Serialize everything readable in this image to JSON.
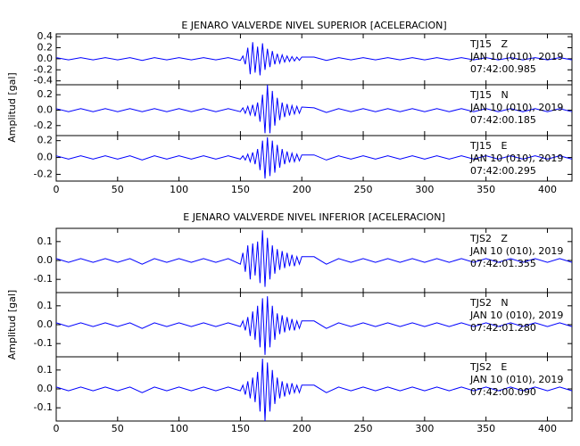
{
  "chart_data": [
    {
      "type": "line",
      "title": "E JENARO VALVERDE NIVEL SUPERIOR [ACELERACION]",
      "ylabel": "Amplitud [gal]",
      "xlim": [
        0,
        420
      ],
      "xticks": [
        0,
        50,
        100,
        150,
        200,
        250,
        300,
        350,
        400
      ],
      "x": [
        0,
        10,
        20,
        30,
        40,
        50,
        60,
        70,
        80,
        90,
        100,
        110,
        120,
        130,
        140,
        150,
        152,
        154,
        156,
        158,
        160,
        162,
        164,
        166,
        168,
        170,
        172,
        174,
        176,
        178,
        180,
        182,
        184,
        186,
        188,
        190,
        192,
        194,
        196,
        198,
        200,
        210,
        220,
        230,
        240,
        250,
        260,
        270,
        280,
        290,
        300,
        310,
        320,
        330,
        340,
        350,
        360,
        370,
        380,
        390,
        400,
        410,
        420
      ],
      "panels": [
        {
          "ylim": [
            -0.47,
            0.45
          ],
          "yticks": [
            0.4,
            0.2,
            {
              "value": 0,
              "label": "0.0"
            },
            -0.2,
            -0.4
          ],
          "color": "#0000ff",
          "station": "TJ15   Z",
          "date": "JAN 10 (010), 2019",
          "time": "07:42:00.985",
          "values": [
            0.02,
            -0.02,
            0.02,
            -0.02,
            0.02,
            -0.02,
            0.02,
            -0.03,
            0.02,
            -0.02,
            0.02,
            -0.02,
            0.02,
            -0.02,
            0.02,
            -0.03,
            0.05,
            -0.1,
            0.2,
            -0.28,
            0.3,
            -0.25,
            0.22,
            -0.3,
            0.28,
            -0.2,
            0.18,
            -0.15,
            0.14,
            -0.1,
            0.09,
            -0.08,
            0.07,
            -0.06,
            0.05,
            -0.05,
            0.04,
            -0.04,
            0.03,
            -0.03,
            0.03,
            0.03,
            -0.03,
            0.02,
            -0.02,
            0.02,
            -0.02,
            0.02,
            -0.02,
            0.02,
            -0.02,
            0.02,
            -0.02,
            0.02,
            -0.02,
            0.02,
            -0.02,
            0.02,
            -0.02,
            0.02,
            -0.02,
            0.02,
            -0.02
          ]
        },
        {
          "ylim": [
            -0.33,
            0.33
          ],
          "yticks": [
            0.2,
            {
              "value": 0,
              "label": "0.0"
            },
            -0.2
          ],
          "color": "#0000ff",
          "station": "TJ15   N",
          "date": "JAN 10 (010), 2019",
          "time": "07:42:00.185",
          "values": [
            0.02,
            -0.02,
            0.02,
            -0.02,
            0.02,
            -0.02,
            0.02,
            -0.02,
            0.02,
            -0.02,
            0.02,
            -0.02,
            0.02,
            -0.02,
            0.02,
            -0.02,
            0.03,
            -0.04,
            0.05,
            -0.06,
            0.07,
            -0.08,
            0.1,
            -0.15,
            0.2,
            -0.3,
            0.33,
            -0.3,
            0.25,
            -0.2,
            0.16,
            -0.13,
            0.1,
            -0.09,
            0.08,
            -0.07,
            0.06,
            -0.05,
            0.05,
            -0.04,
            0.04,
            0.03,
            -0.03,
            0.02,
            -0.02,
            0.02,
            -0.02,
            0.02,
            -0.02,
            0.02,
            -0.02,
            0.02,
            -0.02,
            0.02,
            -0.02,
            0.02,
            -0.02,
            0.02,
            -0.02,
            0.02,
            -0.02,
            0.02,
            -0.02
          ]
        },
        {
          "ylim": [
            -0.28,
            0.26
          ],
          "yticks": [
            0.2,
            {
              "value": 0,
              "label": "0.0"
            },
            -0.2
          ],
          "color": "#0000ff",
          "station": "TJ15   E",
          "date": "JAN 10 (010), 2019",
          "time": "07:42:00.295",
          "values": [
            0.02,
            -0.02,
            0.02,
            -0.02,
            0.02,
            -0.02,
            0.02,
            -0.03,
            0.02,
            -0.02,
            0.02,
            -0.02,
            0.02,
            -0.02,
            0.02,
            -0.02,
            0.02,
            -0.03,
            0.04,
            -0.05,
            0.06,
            -0.08,
            0.1,
            -0.15,
            0.2,
            -0.25,
            0.24,
            -0.22,
            0.2,
            -0.18,
            0.15,
            -0.12,
            0.1,
            -0.08,
            0.07,
            -0.06,
            0.05,
            -0.05,
            0.04,
            -0.04,
            0.03,
            0.03,
            -0.03,
            0.02,
            -0.02,
            0.02,
            -0.02,
            0.02,
            -0.02,
            0.02,
            -0.02,
            0.02,
            -0.02,
            0.02,
            -0.02,
            0.02,
            -0.02,
            0.02,
            -0.02,
            0.02,
            -0.02,
            0.02,
            -0.02
          ]
        }
      ]
    },
    {
      "type": "line",
      "title": "E JENARO VALVERDE NIVEL INFERIOR [ACELERACION]",
      "ylabel": "Amplitud [gal]",
      "xlim": [
        0,
        420
      ],
      "xticks": [
        0,
        50,
        100,
        150,
        200,
        250,
        300,
        350,
        400
      ],
      "x": [
        0,
        10,
        20,
        30,
        40,
        50,
        60,
        70,
        80,
        90,
        100,
        110,
        120,
        130,
        140,
        150,
        152,
        154,
        156,
        158,
        160,
        162,
        164,
        166,
        168,
        170,
        172,
        174,
        176,
        178,
        180,
        182,
        184,
        186,
        188,
        190,
        192,
        194,
        196,
        198,
        200,
        210,
        220,
        230,
        240,
        250,
        260,
        270,
        280,
        290,
        300,
        310,
        320,
        330,
        340,
        350,
        360,
        370,
        380,
        390,
        400,
        410,
        420
      ],
      "panels": [
        {
          "ylim": [
            -0.17,
            0.17
          ],
          "yticks": [
            0.1,
            {
              "value": 0,
              "label": "0.0"
            },
            -0.1
          ],
          "color": "#0000ff",
          "station": "TJS2   Z",
          "date": "JAN 10 (010), 2019",
          "time": "07:42:01.355",
          "values": [
            0.01,
            -0.01,
            0.01,
            -0.01,
            0.01,
            -0.01,
            0.01,
            -0.02,
            0.01,
            -0.01,
            0.01,
            -0.01,
            0.01,
            -0.01,
            0.01,
            -0.02,
            0.04,
            -0.06,
            0.08,
            -0.1,
            0.09,
            -0.08,
            0.1,
            -0.12,
            0.16,
            -0.14,
            0.12,
            -0.1,
            0.08,
            -0.07,
            0.06,
            -0.05,
            0.05,
            -0.04,
            0.04,
            -0.03,
            0.03,
            -0.03,
            0.02,
            -0.02,
            0.02,
            0.02,
            -0.02,
            0.01,
            -0.01,
            0.01,
            -0.01,
            0.01,
            -0.01,
            0.01,
            -0.01,
            0.01,
            -0.01,
            0.01,
            -0.01,
            0.01,
            -0.01,
            0.01,
            -0.01,
            0.01,
            -0.01,
            0.01,
            -0.01
          ]
        },
        {
          "ylim": [
            -0.17,
            0.17
          ],
          "yticks": [
            0.1,
            {
              "value": 0,
              "label": "0.0"
            },
            -0.1
          ],
          "color": "#0000ff",
          "station": "TJS2   N",
          "date": "JAN 10 (010), 2019",
          "time": "07:42:01.280",
          "values": [
            0.01,
            -0.01,
            0.01,
            -0.01,
            0.01,
            -0.01,
            0.01,
            -0.02,
            0.01,
            -0.01,
            0.01,
            -0.01,
            0.01,
            -0.01,
            0.01,
            -0.01,
            0.02,
            -0.03,
            0.04,
            -0.06,
            0.07,
            -0.08,
            0.1,
            -0.12,
            0.14,
            -0.16,
            0.15,
            -0.12,
            0.1,
            -0.08,
            0.06,
            -0.05,
            0.05,
            -0.04,
            0.04,
            -0.03,
            0.03,
            -0.03,
            0.02,
            -0.02,
            0.02,
            0.02,
            -0.02,
            0.01,
            -0.01,
            0.01,
            -0.01,
            0.01,
            -0.01,
            0.01,
            -0.01,
            0.01,
            -0.01,
            0.01,
            -0.01,
            0.01,
            -0.01,
            0.01,
            -0.01,
            0.01,
            -0.01,
            0.01,
            -0.01
          ]
        },
        {
          "ylim": [
            -0.17,
            0.17
          ],
          "yticks": [
            0.1,
            {
              "value": 0,
              "label": "0.0"
            },
            -0.1
          ],
          "color": "#0000ff",
          "station": "TJS2   E",
          "date": "JAN 10 (010), 2019",
          "time": "07:42:00.090",
          "values": [
            0.01,
            -0.01,
            0.01,
            -0.01,
            0.01,
            -0.01,
            0.01,
            -0.02,
            0.01,
            -0.01,
            0.01,
            -0.01,
            0.01,
            -0.01,
            0.01,
            -0.01,
            0.02,
            -0.03,
            0.04,
            -0.05,
            0.06,
            -0.07,
            0.09,
            -0.12,
            0.16,
            -0.17,
            0.14,
            -0.12,
            0.1,
            -0.08,
            0.06,
            -0.05,
            0.04,
            -0.04,
            0.03,
            -0.03,
            0.03,
            -0.02,
            0.02,
            -0.02,
            0.02,
            0.02,
            -0.02,
            0.01,
            -0.01,
            0.01,
            -0.01,
            0.01,
            -0.01,
            0.01,
            -0.01,
            0.01,
            -0.01,
            0.01,
            -0.01,
            0.01,
            -0.01,
            0.01,
            -0.01,
            0.01,
            -0.01,
            0.01,
            -0.01
          ]
        }
      ]
    }
  ]
}
